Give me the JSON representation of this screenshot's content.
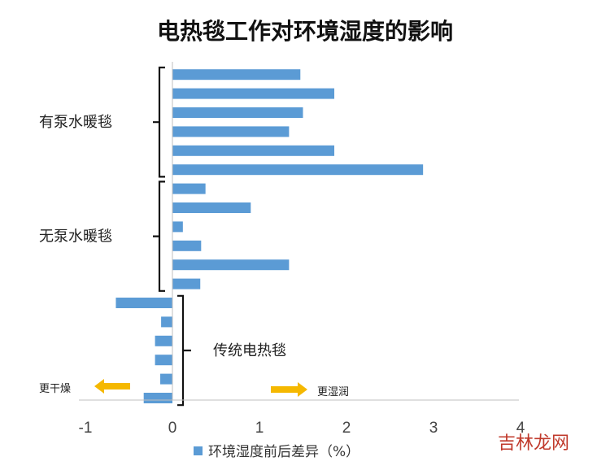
{
  "chart_data": {
    "type": "bar",
    "orientation": "horizontal",
    "title": "电热毯工作对环境湿度的影响",
    "xlim": [
      -1,
      4
    ],
    "xticks": [
      "-1",
      "0",
      "1",
      "2",
      "3",
      "4"
    ],
    "grid": false,
    "legend_position": "bottom",
    "series": [
      {
        "name": "环境湿度前后差异（%）",
        "color": "#5b9bd5",
        "values": [
          1.47,
          1.86,
          1.5,
          1.34,
          1.86,
          2.88,
          0.38,
          0.9,
          0.12,
          0.33,
          1.34,
          0.32,
          -0.65,
          -0.13,
          -0.2,
          -0.2,
          -0.14,
          -0.33
        ]
      }
    ],
    "groups": [
      {
        "label": "有泵水暖毯",
        "bars": [
          0,
          5
        ],
        "bracket_side": "left"
      },
      {
        "label": "无泵水暖毯",
        "bars": [
          6,
          11
        ],
        "bracket_side": "left"
      },
      {
        "label": "传统电热毯",
        "bars": [
          12,
          17
        ],
        "bracket_side": "right"
      }
    ],
    "annotations": {
      "dry_label": "更干燥",
      "wet_label": "更湿润",
      "arrow_color": "#f5b800"
    }
  },
  "watermark": "吉林龙网"
}
